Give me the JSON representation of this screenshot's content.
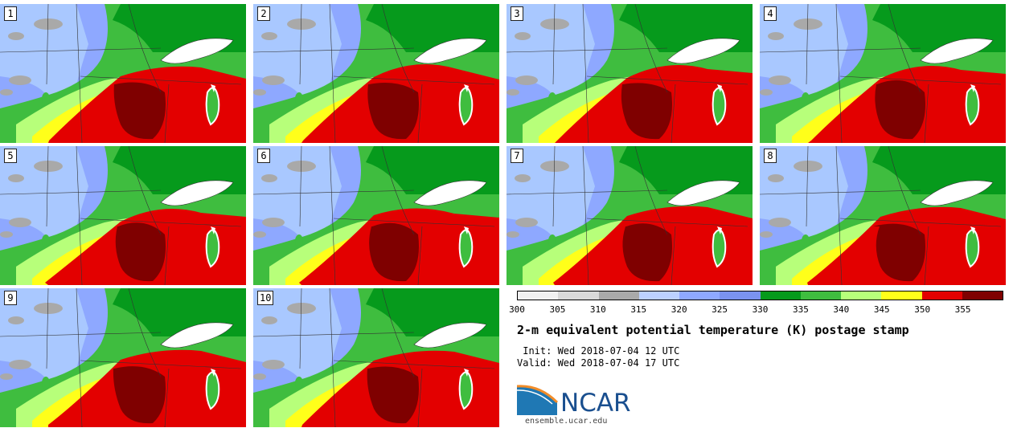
{
  "panels": [
    {
      "label": "1"
    },
    {
      "label": "2"
    },
    {
      "label": "3"
    },
    {
      "label": "4"
    },
    {
      "label": "5"
    },
    {
      "label": "6"
    },
    {
      "label": "7"
    },
    {
      "label": "8"
    },
    {
      "label": "9"
    },
    {
      "label": "10"
    }
  ],
  "colorbar": {
    "colors": [
      "#f1f1f1",
      "#d9d9d9",
      "#a9a9a9",
      "#bcd1ff",
      "#8ea8ff",
      "#7a92f0",
      "#069a1c",
      "#3fbd3f",
      "#b7ff7a",
      "#ffff1a",
      "#e30000",
      "#7f0000"
    ],
    "ticks": [
      "300",
      "305",
      "310",
      "315",
      "320",
      "325",
      "330",
      "335",
      "340",
      "345",
      "350",
      "355"
    ]
  },
  "legend": {
    "title": "2-m equivalent potential temperature (K) postage stamp",
    "init": " Init: Wed 2018-07-04 12 UTC",
    "valid": "Valid: Wed 2018-07-04 17 UTC"
  },
  "logo": {
    "name": "NCAR",
    "url": "ensemble.ucar.edu"
  },
  "map_colors": {
    "west": "#a9c8ff",
    "west_dark": "#8ea8ff",
    "transition": "#7a92f0",
    "green_dark": "#069a1c",
    "green": "#3fbd3f",
    "green_light": "#b7ff7a",
    "yellow": "#ffff1a",
    "red": "#e30000",
    "maroon": "#7f0000",
    "gray": "#a9a9a9",
    "lake": "#ffffff",
    "border": "#333333"
  }
}
